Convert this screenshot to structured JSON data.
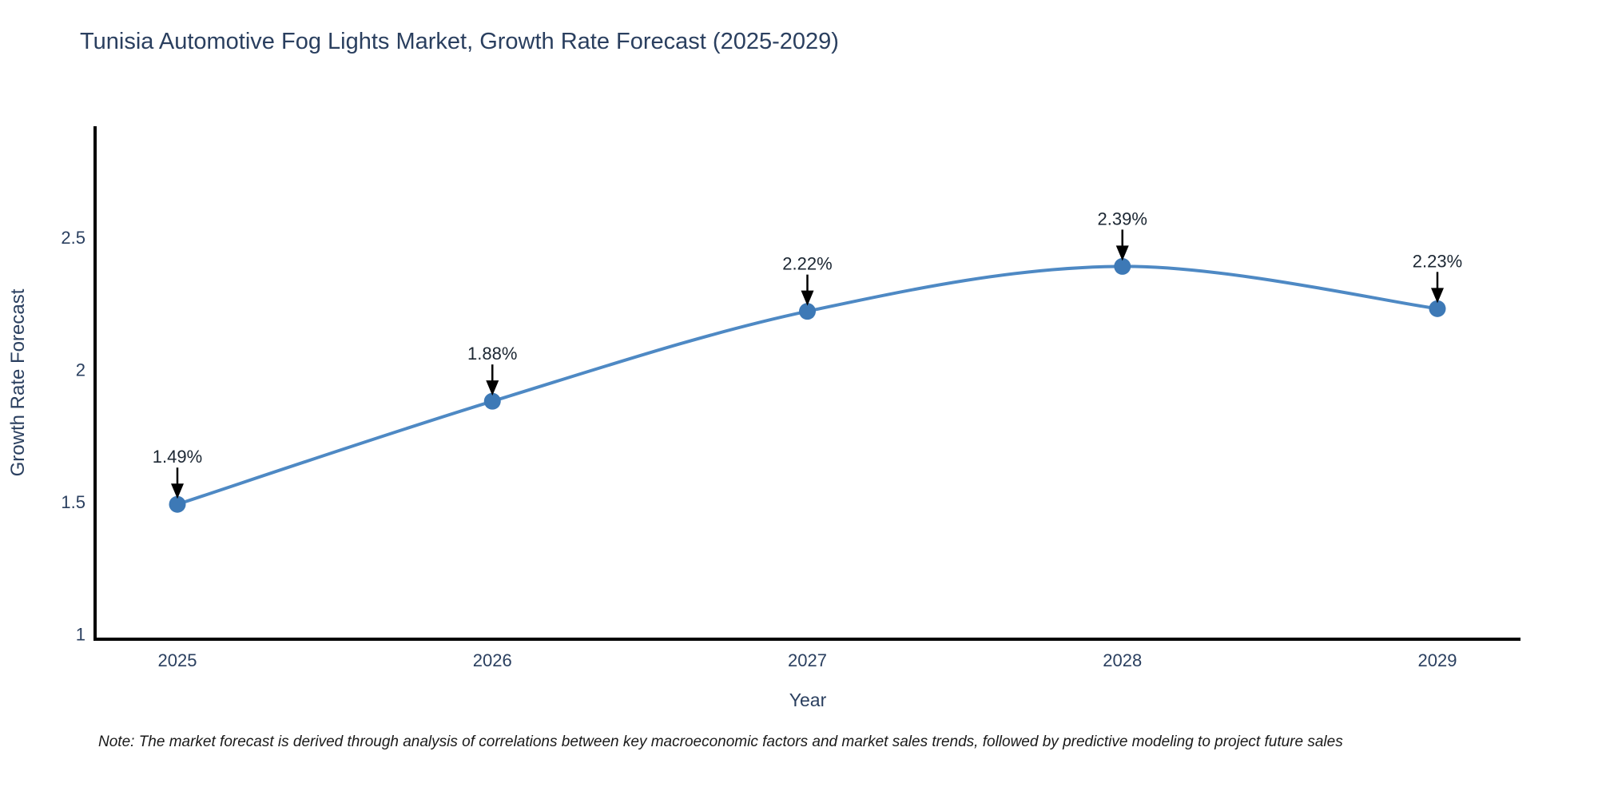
{
  "header": {
    "title": "Tunisia Automotive Fog Lights Market, Growth Rate Forecast (2025-2029)"
  },
  "chart_data": {
    "type": "line",
    "title": "Tunisia Automotive Fog Lights Market, Growth Rate Forecast (2025-2029)",
    "x": [
      2025,
      2026,
      2027,
      2028,
      2029
    ],
    "x_tick_labels": [
      "2025",
      "2026",
      "2027",
      "2028",
      "2029"
    ],
    "values": [
      1.49,
      1.88,
      2.22,
      2.39,
      2.23
    ],
    "point_labels": [
      "1.49%",
      "1.88%",
      "2.22%",
      "2.39%",
      "2.23%"
    ],
    "xlabel": "Year",
    "ylabel": "Growth Rate Forecast",
    "ylim": [
      0.98,
      2.92
    ],
    "yticks": [
      1,
      1.5,
      2,
      2.5
    ],
    "ytick_labels": [
      "1",
      "1.5",
      "2",
      "2.5"
    ],
    "grid": false,
    "legend_position": "none",
    "smooth_spline": true,
    "annotation_style": "value-label-with-down-arrow"
  },
  "colors": {
    "background": "#ffffff",
    "line": "#4e89c4",
    "marker": "#3d79b6",
    "axis_line": "#000000",
    "tick_text": "#2a3f5f",
    "title_text": "#2a3f5f",
    "annotation_text": "#1c2733",
    "arrow": "#000000",
    "note_text": "#1a1a1a"
  },
  "footnote": {
    "text": "Note: The market forecast is derived through analysis of correlations between key macroeconomic factors and market sales trends, followed by predictive modeling to project future sales"
  }
}
